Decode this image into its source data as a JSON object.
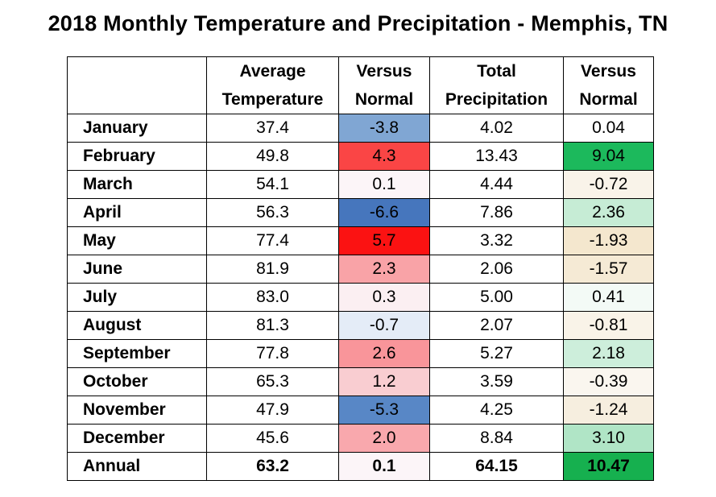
{
  "title": "2018 Monthly Temperature and Precipitation - Memphis, TN",
  "headers": {
    "avg_temp_line1": "Average",
    "avg_temp_line2": "Temperature",
    "temp_vs_line1": "Versus",
    "temp_vs_line2": "Normal",
    "precip_line1": "Total",
    "precip_line2": "Precipitation",
    "precip_vs_line1": "Versus",
    "precip_vs_line2": "Normal"
  },
  "rows": [
    {
      "month": "January",
      "avg_temp": "37.4",
      "temp_vs": "-3.8",
      "precip": "4.02",
      "precip_vs": "0.04",
      "temp_color": "#80a6d3",
      "precip_color": "#ffffff"
    },
    {
      "month": "February",
      "avg_temp": "49.8",
      "temp_vs": "4.3",
      "precip": "13.43",
      "precip_vs": "9.04",
      "temp_color": "#fa4545",
      "precip_color": "#1cb95c"
    },
    {
      "month": "March",
      "avg_temp": "54.1",
      "temp_vs": "0.1",
      "precip": "4.44",
      "precip_vs": "-0.72",
      "temp_color": "#fcf5f8",
      "precip_color": "#f9f3e9"
    },
    {
      "month": "April",
      "avg_temp": "56.3",
      "temp_vs": "-6.6",
      "precip": "7.86",
      "precip_vs": "2.36",
      "temp_color": "#4676bd",
      "precip_color": "#c6ecd5"
    },
    {
      "month": "May",
      "avg_temp": "77.4",
      "temp_vs": "5.7",
      "precip": "3.32",
      "precip_vs": "-1.93",
      "temp_color": "#fb1212",
      "precip_color": "#f4e7ce"
    },
    {
      "month": "June",
      "avg_temp": "81.9",
      "temp_vs": "2.3",
      "precip": "2.06",
      "precip_vs": "-1.57",
      "temp_color": "#f9a3a7",
      "precip_color": "#f5ead5"
    },
    {
      "month": "July",
      "avg_temp": "83.0",
      "temp_vs": "0.3",
      "precip": "5.00",
      "precip_vs": "0.41",
      "temp_color": "#fbeff2",
      "precip_color": "#f3faf6"
    },
    {
      "month": "August",
      "avg_temp": "81.3",
      "temp_vs": "-0.7",
      "precip": "2.07",
      "precip_vs": "-0.81",
      "temp_color": "#e4ecf7",
      "precip_color": "#f9f3e8"
    },
    {
      "month": "September",
      "avg_temp": "77.8",
      "temp_vs": "2.6",
      "precip": "5.27",
      "precip_vs": "2.18",
      "temp_color": "#f9959a",
      "precip_color": "#cdeedb"
    },
    {
      "month": "October",
      "avg_temp": "65.3",
      "temp_vs": "1.2",
      "precip": "3.59",
      "precip_vs": "-0.39",
      "temp_color": "#f9cdd1",
      "precip_color": "#faf6ef"
    },
    {
      "month": "November",
      "avg_temp": "47.9",
      "temp_vs": "-5.3",
      "precip": "4.25",
      "precip_vs": "-1.24",
      "temp_color": "#5887c6",
      "precip_color": "#f6eedf"
    },
    {
      "month": "December",
      "avg_temp": "45.6",
      "temp_vs": "2.0",
      "precip": "8.84",
      "precip_vs": "3.10",
      "temp_color": "#f9a8ad",
      "precip_color": "#b0e5c6"
    }
  ],
  "annual": {
    "month": "Annual",
    "avg_temp": "63.2",
    "temp_vs": "0.1",
    "precip": "64.15",
    "precip_vs": "10.47",
    "temp_color": "#fcf5f8",
    "precip_color": "#16b04f"
  }
}
